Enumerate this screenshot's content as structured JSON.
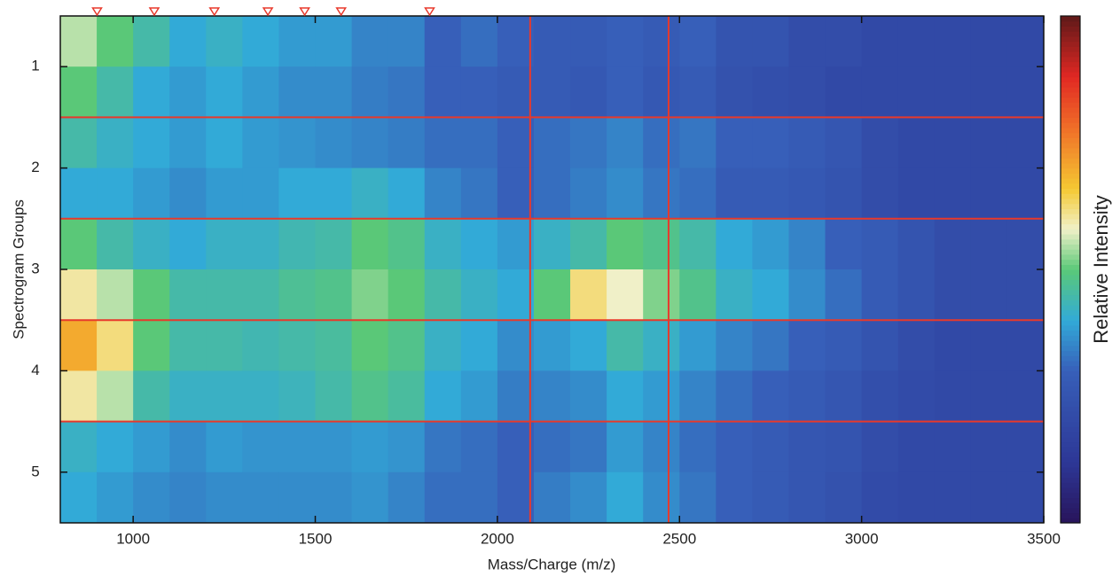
{
  "chart_data": {
    "type": "heatmap",
    "xlabel": "Mass/Charge (m/z)",
    "ylabel": "Spectrogram Groups",
    "colorbar_label": "Relative Intensity",
    "colormap": "jet",
    "clim": [
      0,
      1
    ],
    "xlim": [
      800,
      3500
    ],
    "ylim": [
      5.5,
      0.5
    ],
    "xticks": [
      1000,
      1500,
      2000,
      2500,
      3000,
      3500
    ],
    "yticks": [
      1,
      2,
      3,
      4,
      5
    ],
    "xbins": [
      800,
      900,
      1000,
      1100,
      1200,
      1300,
      1400,
      1500,
      1600,
      1700,
      1800,
      1900,
      2000,
      2100,
      2200,
      2300,
      2400,
      2500,
      2600,
      2700,
      2800,
      2900,
      3000,
      3100,
      3200,
      3300,
      3400,
      3500
    ],
    "ybins": [
      0.5,
      1,
      1.5,
      2,
      2.5,
      3,
      3.5,
      4,
      4.5,
      5,
      5.5
    ],
    "values": [
      [
        0.55,
        0.5,
        0.45,
        0.4,
        0.42,
        0.4,
        0.38,
        0.38,
        0.35,
        0.35,
        0.3,
        0.32,
        0.3,
        0.28,
        0.28,
        0.3,
        0.28,
        0.3,
        0.25,
        0.25,
        0.22,
        0.22,
        0.2,
        0.2,
        0.2,
        0.2,
        0.2
      ],
      [
        0.5,
        0.45,
        0.4,
        0.38,
        0.4,
        0.38,
        0.36,
        0.36,
        0.34,
        0.33,
        0.3,
        0.3,
        0.28,
        0.28,
        0.27,
        0.3,
        0.27,
        0.28,
        0.24,
        0.23,
        0.22,
        0.2,
        0.2,
        0.2,
        0.2,
        0.2,
        0.2
      ],
      [
        0.45,
        0.42,
        0.4,
        0.38,
        0.4,
        0.38,
        0.37,
        0.36,
        0.35,
        0.34,
        0.32,
        0.32,
        0.3,
        0.32,
        0.33,
        0.35,
        0.32,
        0.33,
        0.3,
        0.3,
        0.28,
        0.26,
        0.22,
        0.2,
        0.2,
        0.2,
        0.2
      ],
      [
        0.4,
        0.4,
        0.38,
        0.36,
        0.38,
        0.38,
        0.4,
        0.4,
        0.42,
        0.4,
        0.35,
        0.33,
        0.3,
        0.32,
        0.34,
        0.36,
        0.33,
        0.32,
        0.28,
        0.28,
        0.27,
        0.25,
        0.22,
        0.2,
        0.2,
        0.2,
        0.2
      ],
      [
        0.5,
        0.45,
        0.42,
        0.4,
        0.42,
        0.42,
        0.44,
        0.45,
        0.5,
        0.48,
        0.42,
        0.4,
        0.38,
        0.42,
        0.45,
        0.5,
        0.48,
        0.45,
        0.4,
        0.38,
        0.35,
        0.3,
        0.28,
        0.25,
        0.22,
        0.22,
        0.22
      ],
      [
        0.6,
        0.55,
        0.5,
        0.45,
        0.45,
        0.45,
        0.47,
        0.48,
        0.52,
        0.5,
        0.45,
        0.42,
        0.4,
        0.5,
        0.62,
        0.58,
        0.52,
        0.48,
        0.42,
        0.4,
        0.36,
        0.32,
        0.28,
        0.25,
        0.22,
        0.22,
        0.22
      ],
      [
        0.7,
        0.62,
        0.5,
        0.45,
        0.45,
        0.44,
        0.45,
        0.46,
        0.5,
        0.48,
        0.42,
        0.4,
        0.36,
        0.38,
        0.4,
        0.45,
        0.42,
        0.38,
        0.35,
        0.33,
        0.3,
        0.28,
        0.25,
        0.22,
        0.2,
        0.2,
        0.2
      ],
      [
        0.6,
        0.55,
        0.45,
        0.42,
        0.42,
        0.42,
        0.43,
        0.45,
        0.48,
        0.46,
        0.4,
        0.38,
        0.34,
        0.35,
        0.36,
        0.4,
        0.38,
        0.35,
        0.32,
        0.3,
        0.28,
        0.26,
        0.23,
        0.21,
        0.2,
        0.2,
        0.2
      ],
      [
        0.42,
        0.4,
        0.38,
        0.36,
        0.38,
        0.37,
        0.37,
        0.37,
        0.38,
        0.37,
        0.33,
        0.32,
        0.3,
        0.32,
        0.33,
        0.38,
        0.35,
        0.32,
        0.3,
        0.28,
        0.26,
        0.25,
        0.22,
        0.2,
        0.2,
        0.2,
        0.2
      ],
      [
        0.4,
        0.38,
        0.36,
        0.35,
        0.36,
        0.36,
        0.36,
        0.36,
        0.37,
        0.35,
        0.32,
        0.32,
        0.3,
        0.34,
        0.36,
        0.4,
        0.36,
        0.33,
        0.3,
        0.28,
        0.26,
        0.24,
        0.21,
        0.2,
        0.2,
        0.2,
        0.2
      ]
    ],
    "hlines": [
      1.5,
      2.5,
      3.5,
      4.5
    ],
    "vlines": [
      2090,
      2470
    ],
    "line_color": "#e8392b",
    "markers": [
      901,
      1058,
      1223,
      1370,
      1471,
      1571,
      1814
    ],
    "marker_color": "#e8392b"
  }
}
